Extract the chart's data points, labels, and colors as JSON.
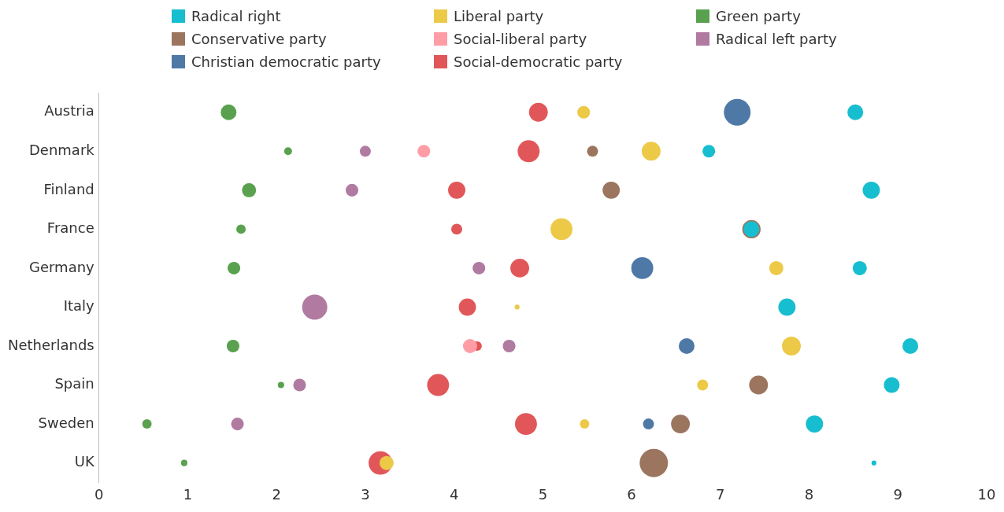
{
  "chart_data": {
    "type": "bubble",
    "orientation": "horizontal",
    "legend": "top",
    "grid": false,
    "xlim": [
      0,
      10
    ],
    "xticks": [
      0,
      1,
      2,
      3,
      4,
      5,
      6,
      7,
      8,
      9,
      10
    ],
    "categories": [
      "Austria",
      "Denmark",
      "Finland",
      "France",
      "Germany",
      "Italy",
      "Netherlands",
      "Spain",
      "Sweden",
      "UK"
    ],
    "series": [
      {
        "name": "Radical right",
        "color": "#17becf",
        "values": [
          8.52,
          6.87,
          8.7,
          7.35,
          8.57,
          7.75,
          9.14,
          8.93,
          8.06,
          8.73
        ],
        "sizes": [
          0.31,
          0.2,
          0.37,
          0.31,
          0.25,
          0.37,
          0.31,
          0.31,
          0.37,
          0.03
        ]
      },
      {
        "name": "Liberal party",
        "color": "#edc948",
        "values": [
          5.46,
          6.22,
          null,
          5.21,
          7.63,
          4.71,
          7.8,
          6.8,
          5.47,
          3.24
        ],
        "sizes": [
          0.2,
          0.44,
          null,
          0.6,
          0.25,
          0.03,
          0.44,
          0.15,
          0.11,
          0.25
        ]
      },
      {
        "name": "Green party",
        "color": "#59a14f",
        "values": [
          1.46,
          2.13,
          1.69,
          1.6,
          1.52,
          null,
          1.51,
          2.05,
          0.54,
          0.96
        ],
        "sizes": [
          0.31,
          0.077,
          0.25,
          0.11,
          0.2,
          null,
          0.2,
          0.05,
          0.11,
          0.05
        ]
      },
      {
        "name": "Conservative party",
        "color": "#9c755f",
        "values": [
          null,
          5.56,
          5.77,
          7.35,
          null,
          null,
          null,
          7.43,
          6.55,
          6.25
        ],
        "sizes": [
          null,
          0.15,
          0.37,
          0.42,
          null,
          null,
          null,
          0.44,
          0.44,
          1
        ]
      },
      {
        "name": "Social-liberal party",
        "color": "#ff9da7",
        "values": [
          null,
          3.66,
          null,
          null,
          null,
          null,
          4.18,
          null,
          null,
          null
        ],
        "sizes": [
          null,
          0.2,
          null,
          null,
          null,
          null,
          0.25,
          null,
          null,
          null
        ]
      },
      {
        "name": "Radical left party",
        "color": "#b07aa1",
        "values": [
          null,
          3.0,
          2.85,
          null,
          4.28,
          2.43,
          4.62,
          2.26,
          1.56,
          null
        ],
        "sizes": [
          null,
          0.15,
          0.2,
          null,
          0.2,
          0.79,
          0.2,
          0.2,
          0.2,
          null
        ]
      },
      {
        "name": "Christian democratic party",
        "color": "#4e79a7",
        "values": [
          7.19,
          null,
          null,
          null,
          6.12,
          null,
          6.62,
          null,
          6.19,
          null
        ],
        "sizes": [
          0.89,
          null,
          null,
          null,
          0.6,
          null,
          0.31,
          null,
          0.15,
          null
        ]
      },
      {
        "name": "Social-democratic party",
        "color": "#e15759",
        "values": [
          4.95,
          4.84,
          4.03,
          4.03,
          4.74,
          4.15,
          4.26,
          3.82,
          4.81,
          3.17
        ],
        "sizes": [
          0.44,
          0.6,
          0.37,
          0.15,
          0.44,
          0.37,
          0.11,
          0.6,
          0.6,
          0.69
        ]
      }
    ]
  }
}
